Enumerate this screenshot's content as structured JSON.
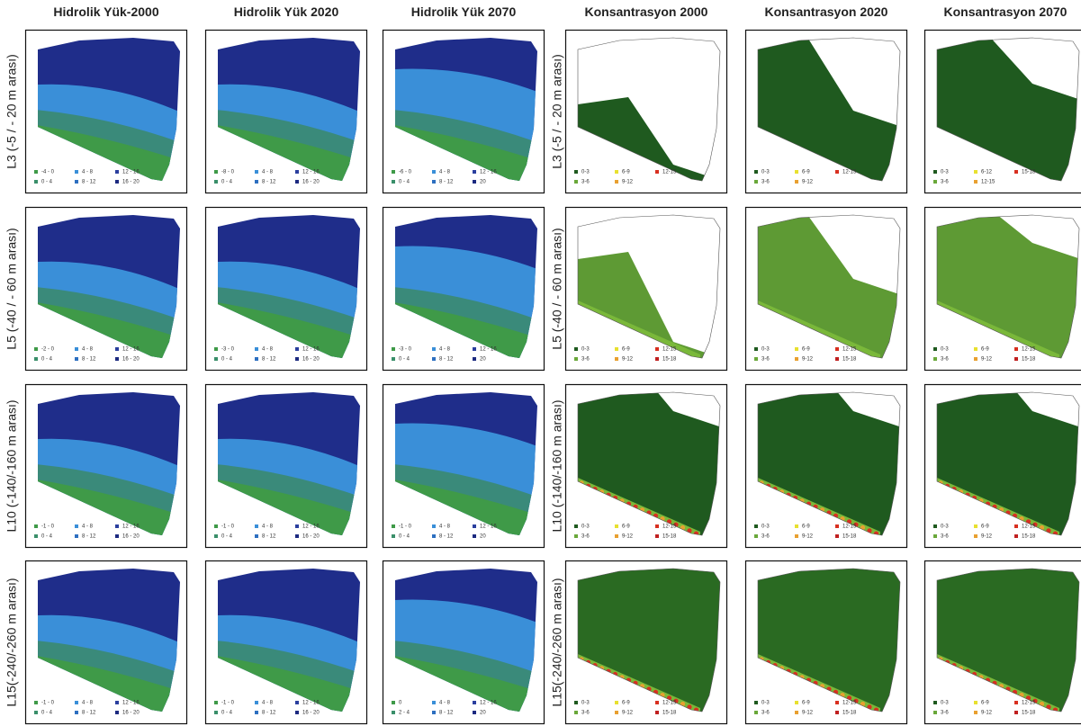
{
  "columns": [
    "Hidrolik Yük-2000",
    "Hidrolik Yük 2020",
    "Hidrolik Yük 2070",
    "Konsantrasyon 2000",
    "Konsantrasyon 2020",
    "Konsantrasyon 2070"
  ],
  "rows": [
    "L3 (-5 / - 20 m arası)",
    "L5 (-40 / - 60 m arası)",
    "L10 (-140/-160 m arası)",
    "L15(-240/-260 m arası)"
  ],
  "palettes": {
    "hydraulic": [
      "#3f9a48",
      "#3a8fd8",
      "#2b3f9e",
      "#3a8f6a",
      "#2d6fc0",
      "#1c2a80"
    ],
    "concentration": [
      "#1f5a1f",
      "#e8e030",
      "#d83020",
      "#6aa83a",
      "#e8a030",
      "#c02020"
    ]
  },
  "panels": [
    [
      {
        "palette": "hydraulic",
        "legend": [
          "-4 - 0",
          "4 - 8",
          "12 - 16",
          "0 - 4",
          "8 - 12",
          "16 - 20"
        ]
      },
      {
        "palette": "hydraulic",
        "legend": [
          "-8 - 0",
          "4 - 8",
          "12 - 16",
          "0 - 4",
          "8 - 12",
          "16 - 20"
        ]
      },
      {
        "palette": "hydraulic",
        "legend": [
          "-6 - 0",
          "4 - 8",
          "12 - 16",
          "0 - 4",
          "8 - 12",
          "20"
        ]
      },
      {
        "palette": "concentration",
        "legend": [
          "0-3",
          "6-9",
          "12-15",
          "3-6",
          "9-12"
        ]
      },
      {
        "palette": "concentration",
        "legend": [
          "0-3",
          "6-9",
          "12-15",
          "3-6",
          "9-12"
        ]
      },
      {
        "palette": "concentration",
        "legend": [
          "0-3",
          "6-12",
          "15-18",
          "3-6",
          "12-15"
        ]
      }
    ],
    [
      {
        "palette": "hydraulic",
        "legend": [
          "-2 - 0",
          "4 - 8",
          "12 - 16",
          "0 - 4",
          "8 - 12",
          "16 - 20"
        ]
      },
      {
        "palette": "hydraulic",
        "legend": [
          "-3 - 0",
          "4 - 8",
          "12 - 16",
          "0 - 4",
          "8 - 12",
          "16 - 20"
        ]
      },
      {
        "palette": "hydraulic",
        "legend": [
          "-3 - 0",
          "4 - 8",
          "12 - 16",
          "0 - 4",
          "8 - 12",
          "20"
        ]
      },
      {
        "palette": "concentration",
        "legend": [
          "0-3",
          "6-9",
          "12-15",
          "3-6",
          "9-12",
          "15-18"
        ]
      },
      {
        "palette": "concentration",
        "legend": [
          "0-3",
          "6-9",
          "12-15",
          "3-6",
          "9-12",
          "15-18"
        ]
      },
      {
        "palette": "concentration",
        "legend": [
          "0-3",
          "6-9",
          "12-15",
          "3-6",
          "9-12",
          "15-18"
        ]
      }
    ],
    [
      {
        "palette": "hydraulic",
        "legend": [
          "-1 - 0",
          "4 - 8",
          "12 - 16",
          "0 - 4",
          "8 - 12",
          "16 - 20"
        ]
      },
      {
        "palette": "hydraulic",
        "legend": [
          "-1 - 0",
          "4 - 8",
          "12 - 16",
          "0 - 4",
          "8 - 12",
          "16 - 20"
        ]
      },
      {
        "palette": "hydraulic",
        "legend": [
          "-1 - 0",
          "4 - 8",
          "12 - 16",
          "0 - 4",
          "8 - 12",
          "20"
        ]
      },
      {
        "palette": "concentration",
        "legend": [
          "0-3",
          "6-9",
          "12-15",
          "3-6",
          "9-12",
          "15-18"
        ]
      },
      {
        "palette": "concentration",
        "legend": [
          "0-3",
          "6-9",
          "12-15",
          "3-6",
          "9-12",
          "15-18"
        ]
      },
      {
        "palette": "concentration",
        "legend": [
          "0-3",
          "6-9",
          "12-15",
          "3-6",
          "9-12",
          "15-18"
        ]
      }
    ],
    [
      {
        "palette": "hydraulic",
        "legend": [
          "-1 - 0",
          "4 - 8",
          "12 - 16",
          "0 - 4",
          "8 - 12",
          "16 - 20"
        ]
      },
      {
        "palette": "hydraulic",
        "legend": [
          "-1 - 0",
          "4 - 8",
          "12 - 16",
          "0 - 4",
          "8 - 12",
          "16 - 20"
        ]
      },
      {
        "palette": "hydraulic",
        "legend": [
          "0",
          "4 - 8",
          "12 - 16",
          "2 - 4",
          "8 - 12",
          "20"
        ]
      },
      {
        "palette": "concentration",
        "legend": [
          "0-3",
          "6-9",
          "12-15",
          "3-6",
          "9-12",
          "15-18"
        ]
      },
      {
        "palette": "concentration",
        "legend": [
          "0-3",
          "6-9",
          "12-15",
          "3-6",
          "9-12",
          "15-18"
        ]
      },
      {
        "palette": "concentration",
        "legend": [
          "0-3",
          "6-9",
          "12-15",
          "3-6",
          "9-12",
          "15-18"
        ]
      }
    ]
  ]
}
